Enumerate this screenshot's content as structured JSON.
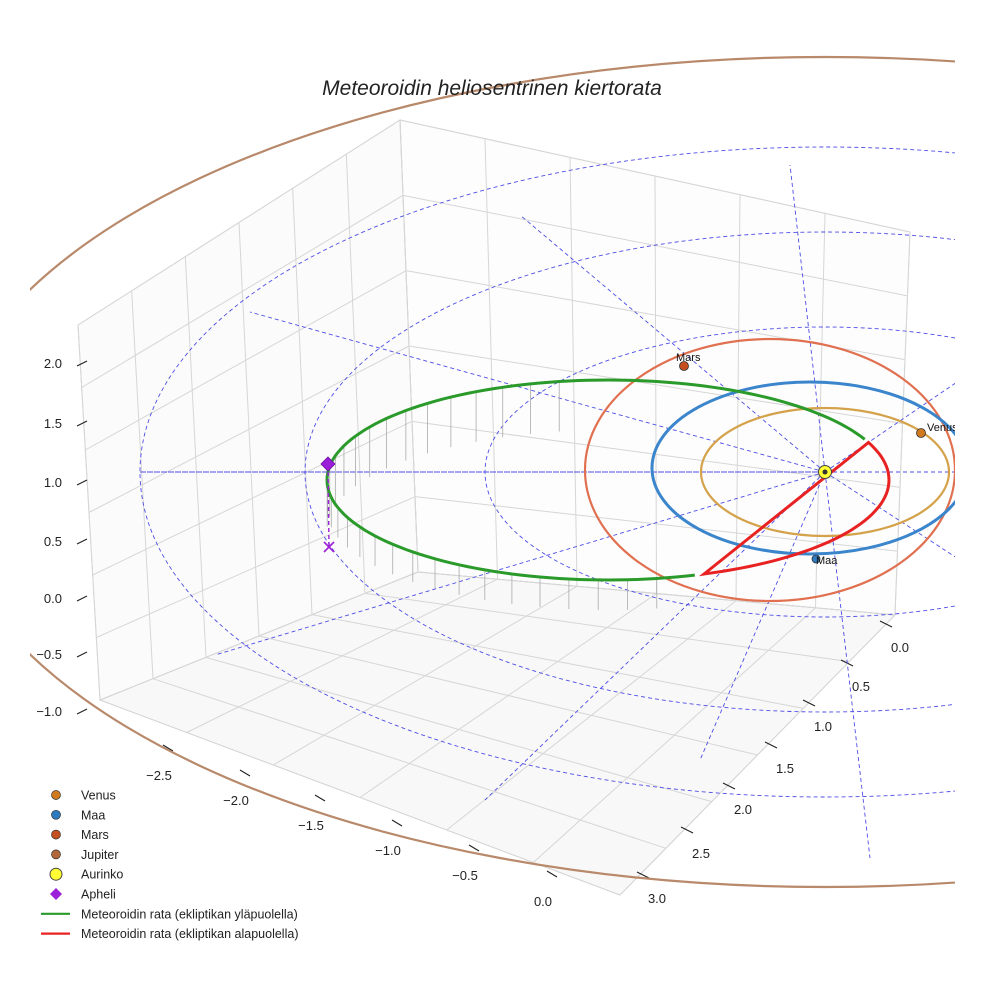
{
  "chart_data": {
    "type": "scatter",
    "projection": "3d",
    "title": "Meteoroidin heliosentrinen kiertorata",
    "xlabel": "",
    "ylabel": "",
    "zlabel": "",
    "x_ticks": [
      "−2.5",
      "−2.0",
      "−1.5",
      "−1.0",
      "−0.5",
      "0.0"
    ],
    "y_ticks": [
      "0.0",
      "0.5",
      "1.0",
      "1.5",
      "2.0",
      "2.5",
      "3.0"
    ],
    "z_ticks": [
      "−1.0",
      "−0.5",
      "0.0",
      "0.5",
      "1.0",
      "1.5",
      "2.0"
    ],
    "xlim": [
      -2.8,
      0.2
    ],
    "ylim": [
      -0.2,
      3.2
    ],
    "zlim": [
      -1.2,
      2.2
    ],
    "grid": true,
    "legend_position": "bottom-left",
    "orbit_labels": [
      "Venus",
      "Maa",
      "Mars",
      "Jupiter"
    ],
    "orbit_colors": {
      "Venus": "#d4a24a",
      "Maa": "#3a85cc",
      "Mars": "#e07050",
      "Jupiter": "#b8896a"
    },
    "planet_labels": [
      {
        "name": "Mars",
        "text": "Mars"
      },
      {
        "name": "Venus",
        "text": "Venus"
      },
      {
        "name": "Maa",
        "text": "Maa"
      }
    ],
    "meteoroid_orbit": {
      "aphelion_distance_au": 3.0,
      "perihelion_distance_au": 0.5,
      "aphelion_height_au": 0.6
    },
    "legend": [
      {
        "label": "Venus",
        "marker": "circle",
        "color": "#d07a1d"
      },
      {
        "label": "Maa",
        "marker": "circle",
        "color": "#2d7bbf"
      },
      {
        "label": "Mars",
        "marker": "circle",
        "color": "#c4501f"
      },
      {
        "label": "Jupiter",
        "marker": "circle",
        "color": "#b0683c"
      },
      {
        "label": "Aurinko",
        "marker": "sun",
        "color": "#ffff33"
      },
      {
        "label": "Apheli",
        "marker": "diamond",
        "color": "#9b1fd8"
      },
      {
        "label": "Meteoroidin rata (ekliptikan yläpuolella)",
        "marker": "line",
        "color": "#2a9a2a"
      },
      {
        "label": "Meteoroidin rata (ekliptikan alapuolella)",
        "marker": "line",
        "color": "#e82222"
      }
    ],
    "colors": {
      "above": "#2a9a2a",
      "below": "#e82222",
      "grid_rings": "#4d4de6",
      "apheli": "#9b1fd8"
    }
  }
}
